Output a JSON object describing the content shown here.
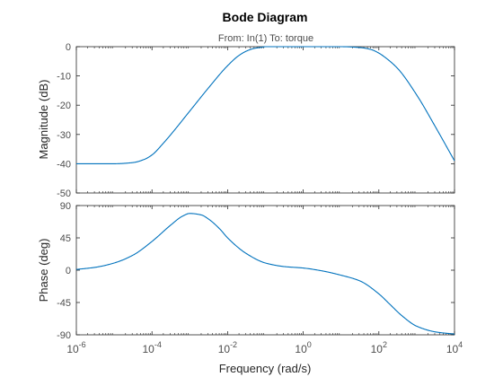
{
  "chart_data": {
    "type": "line",
    "title": "Bode Diagram",
    "subtitle": "From: In(1)  To: torque",
    "xlabel": "Frequency  (rad/s)",
    "xscale": "log",
    "xlim": [
      -6,
      4
    ],
    "x_tick_exponents": [
      "-6",
      "-4",
      "-2",
      "0",
      "2",
      "4"
    ],
    "x_tick_base": "10",
    "line_color": "#0072BD",
    "magnitude": {
      "ylabel": "Magnitude (dB)",
      "ylim": [
        -50,
        0
      ],
      "yticks": [
        "0",
        "-10",
        "-20",
        "-30",
        "-40",
        "-50"
      ],
      "ytick_values": [
        0,
        -10,
        -20,
        -30,
        -40,
        -50
      ],
      "log10_x": [
        -6,
        -5,
        -4.5,
        -4.2,
        -4,
        -3.7,
        -3.5,
        -3,
        -2.5,
        -2,
        -1.7,
        -1.5,
        -1.3,
        -1.1,
        -1,
        0,
        1,
        1.5,
        1.8,
        2,
        2.2,
        2.5,
        3,
        3.5,
        4
      ],
      "values": [
        -40,
        -40,
        -39.6,
        -38.5,
        -37,
        -33,
        -30,
        -22,
        -14,
        -6.5,
        -3,
        -1.5,
        -0.6,
        -0.2,
        0,
        0,
        0,
        -0.3,
        -1,
        -2.2,
        -4,
        -7.5,
        -16.5,
        -27.5,
        -39
      ]
    },
    "phase": {
      "ylabel": "Phase (deg)",
      "ylim": [
        -90,
        90
      ],
      "yticks": [
        "90",
        "45",
        "0",
        "-45",
        "-90"
      ],
      "ytick_values": [
        90,
        45,
        0,
        -45,
        -90
      ],
      "log10_x": [
        -6,
        -5.5,
        -5,
        -4.5,
        -4,
        -3.5,
        -3.2,
        -3,
        -2.7,
        -2.5,
        -2.2,
        -2,
        -1.5,
        -1,
        -0.5,
        0,
        0.5,
        1,
        1.5,
        2,
        2.3,
        2.6,
        3,
        3.5,
        4
      ],
      "values": [
        1,
        4,
        10,
        21,
        40,
        63,
        75,
        79,
        77,
        71,
        57,
        45,
        23,
        10,
        5,
        3,
        -1,
        -7,
        -15,
        -33,
        -48,
        -63,
        -78,
        -86,
        -89
      ]
    }
  }
}
